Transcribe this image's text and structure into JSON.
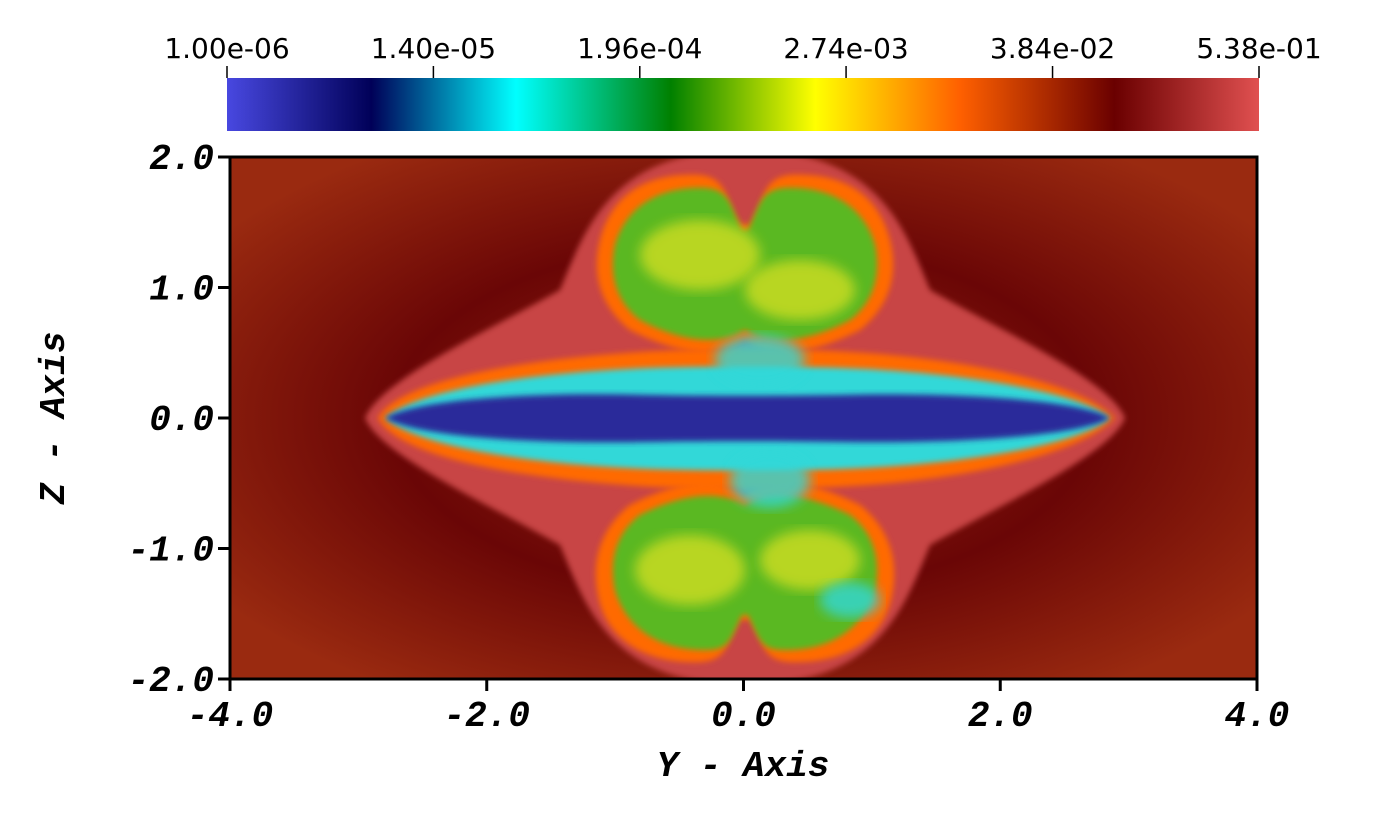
{
  "chart_data": {
    "type": "heatmap",
    "title": "",
    "xlabel": "Y - Axis",
    "ylabel": "Z - Axis",
    "xlim": [
      -4.0,
      4.0
    ],
    "ylim": [
      -2.0,
      2.0
    ],
    "x_ticks": [
      {
        "value": -4.0,
        "label": "-4.0"
      },
      {
        "value": -2.0,
        "label": "-2.0"
      },
      {
        "value": 0.0,
        "label": "0.0"
      },
      {
        "value": 2.0,
        "label": "2.0"
      },
      {
        "value": 4.0,
        "label": "4.0"
      }
    ],
    "y_ticks": [
      {
        "value": 2.0,
        "label": "2.0"
      },
      {
        "value": 1.0,
        "label": "1.0"
      },
      {
        "value": 0.0,
        "label": "0.0"
      },
      {
        "value": -1.0,
        "label": "-1.0"
      },
      {
        "value": -2.0,
        "label": "-2.0"
      }
    ],
    "colorbar": {
      "scale": "log",
      "range": [
        1e-06,
        0.538
      ],
      "placement": "top",
      "ticks": [
        {
          "value": 1e-06,
          "label": "1.00e-06"
        },
        {
          "value": 1.4e-05,
          "label": "1.40e-05"
        },
        {
          "value": 0.000196,
          "label": "1.96e-04"
        },
        {
          "value": 0.00274,
          "label": "2.74e-03"
        },
        {
          "value": 0.0384,
          "label": "3.84e-02"
        },
        {
          "value": 0.538,
          "label": "5.38e-01"
        }
      ],
      "colormap": [
        {
          "pos": 0.0,
          "color": "#4848e0"
        },
        {
          "pos": 0.14,
          "color": "#000058"
        },
        {
          "pos": 0.28,
          "color": "#00ffff"
        },
        {
          "pos": 0.43,
          "color": "#008000"
        },
        {
          "pos": 0.57,
          "color": "#ffff00"
        },
        {
          "pos": 0.71,
          "color": "#ff6000"
        },
        {
          "pos": 0.86,
          "color": "#6a0000"
        },
        {
          "pos": 1.0,
          "color": "#e05050"
        }
      ]
    },
    "field_regions": {
      "ambient": {
        "value": 0.12,
        "color": "#9a2a10"
      },
      "dark_ring": {
        "value": 0.05,
        "color": "#6a0606"
      },
      "shocked_shell": {
        "value": 0.54,
        "color": "#c84545"
      },
      "outer_layer": {
        "value": 0.01,
        "color": "#ff6a00"
      },
      "lobes": {
        "value": 0.0003,
        "color": "#5ab820"
      },
      "lobe_highlights": {
        "value": 0.002,
        "color": "#d8e020"
      },
      "disk": {
        "value": 3e-05,
        "color": "#30d8d8"
      },
      "core": {
        "value": 2e-06,
        "color": "#2a2a9a"
      }
    }
  }
}
